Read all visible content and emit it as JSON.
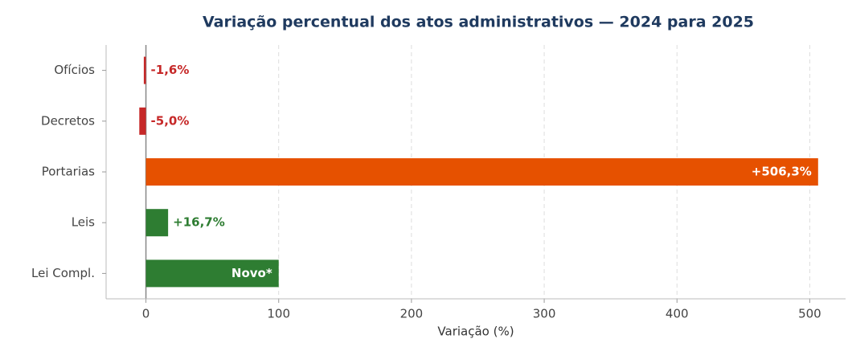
{
  "chart_data": {
    "type": "barh",
    "title": "Variação percentual dos atos administrativos — 2024 para 2025",
    "xlabel": "Variação (%)",
    "categories": [
      "Ofícios",
      "Decretos",
      "Portarias",
      "Leis",
      "Lei Compl."
    ],
    "values": [
      -1.6,
      -5.0,
      506.3,
      16.7,
      100
    ],
    "value_labels": [
      "-1,6%",
      "-5,0%",
      "+506,3%",
      "+16,7%",
      "Novo*"
    ],
    "colors": [
      "#c62828",
      "#c62828",
      "#e65100",
      "#2e7d32",
      "#2e7d32"
    ],
    "xlim": [
      -30,
      527
    ],
    "xticks": [
      0,
      100,
      200,
      300,
      400,
      500
    ],
    "grid": true
  }
}
